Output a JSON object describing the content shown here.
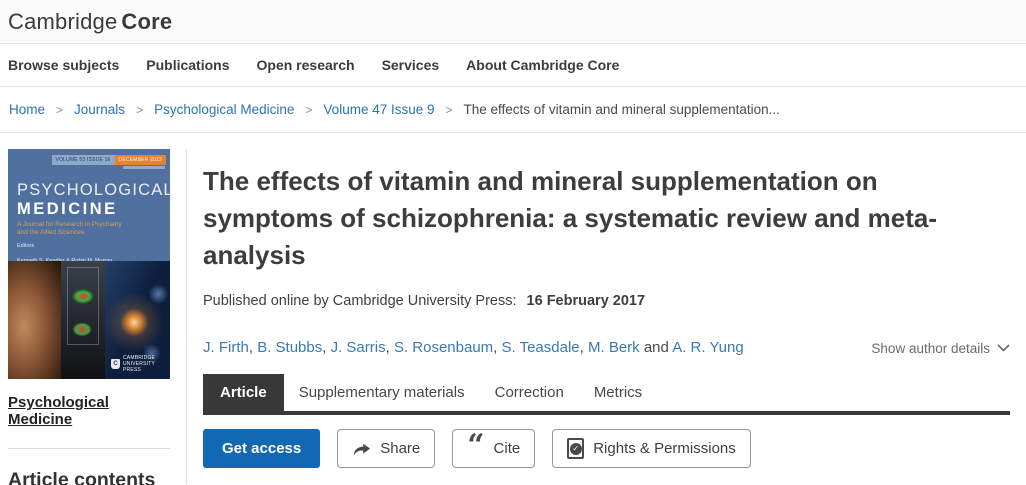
{
  "header": {
    "logo_cambridge": "Cambridge",
    "logo_core": "Core"
  },
  "nav": {
    "items": [
      "Browse subjects",
      "Publications",
      "Open research",
      "Services",
      "About Cambridge Core"
    ]
  },
  "breadcrumb": {
    "links": [
      "Home",
      "Journals",
      "Psychological Medicine",
      "Volume 47 Issue 9"
    ],
    "current": "The effects of vitamin and mineral supplementation...",
    "separator": ">"
  },
  "sidebar": {
    "journal_cover": {
      "volume_banner": "VOLUME 53 ISSUE 16",
      "date_banner": "DECEMBER 2023",
      "title_line1": "PSYCHOLOGICAL",
      "title_line2": "MEDICINE",
      "subtitle": "A Journal for Research in Psychiatry and the Allied Sciences",
      "editors_label": "Editors",
      "editors": "Kenneth S. Kendler & Robin M. Murray",
      "publisher": "CAMBRIDGE UNIVERSITY PRESS",
      "publisher_initial": "C"
    },
    "journal_link": "Psychological Medicine",
    "contents_heading": "Article contents"
  },
  "article": {
    "title": "The effects of vitamin and mineral supplementation on symptoms of schizophrenia: a systematic review and meta-analysis",
    "published_label": "Published online by Cambridge University Press:",
    "published_date": "16 February 2017",
    "authors": [
      "J. Firth",
      "B. Stubbs",
      "J. Sarris",
      "S. Rosenbaum",
      "S. Teasdale",
      "M. Berk",
      "A. R. Yung"
    ],
    "authors_conjunction": "and",
    "show_author_details": "Show author details"
  },
  "tabs": [
    {
      "label": "Article",
      "active": true
    },
    {
      "label": "Supplementary materials",
      "active": false
    },
    {
      "label": "Correction",
      "active": false
    },
    {
      "label": "Metrics",
      "active": false
    }
  ],
  "actions": {
    "get_access": "Get access",
    "share": "Share",
    "cite": "Cite",
    "rights": "Rights & Permissions",
    "check_glyph": "✓",
    "cite_glyph": "“"
  },
  "colors": {
    "accent_blue": "#1268b3",
    "link_blue": "#2c73af",
    "author_blue": "#3b78b5",
    "tab_dark": "#383838",
    "cover_blue": "#50719f",
    "cover_orange": "#e0862c",
    "border_light": "#e3e3e3"
  }
}
